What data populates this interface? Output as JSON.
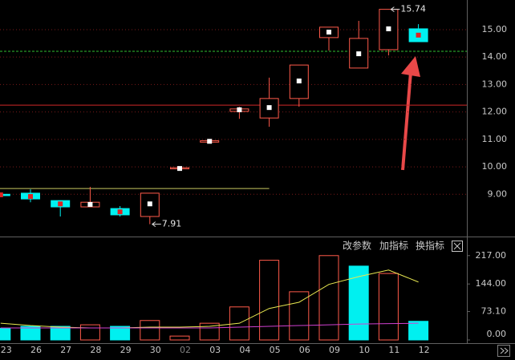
{
  "toolbar": [
    "改参数",
    "加指标",
    "换指标"
  ],
  "chart_data": [
    {
      "type": "candlestick",
      "open": [
        9.0,
        9.04,
        8.77,
        8.54,
        8.48,
        8.19,
        9.94,
        10.9,
        12.02,
        11.78,
        12.49,
        14.71,
        13.6,
        14.27,
        15.03
      ],
      "high": [
        9.05,
        9.18,
        8.77,
        9.27,
        8.57,
        9.04,
        10.0,
        10.95,
        12.19,
        13.25,
        13.71,
        15.09,
        15.32,
        15.74,
        15.2
      ],
      "low": [
        8.95,
        8.71,
        8.19,
        8.54,
        8.19,
        7.91,
        9.94,
        10.9,
        11.75,
        11.46,
        12.19,
        14.24,
        13.6,
        14.06,
        14.56
      ],
      "close": [
        8.95,
        8.83,
        8.54,
        8.71,
        8.25,
        9.04,
        9.97,
        10.95,
        12.11,
        12.49,
        13.71,
        15.09,
        14.68,
        15.74,
        14.56
      ],
      "markers": [
        8.98,
        8.92,
        8.65,
        8.63,
        8.36,
        8.65,
        9.94,
        10.93,
        12.08,
        12.16,
        13.13,
        14.91,
        14.12,
        15.03,
        14.8
      ],
      "up_color": "#ff5a4a",
      "down_color": "#00f0f0",
      "up_marker_color": "#ffffff",
      "down_marker_color": "#e02020",
      "levels": [
        {
          "value": 12.25,
          "color": "#d02828",
          "dash": false,
          "until": 14
        },
        {
          "value": 14.21,
          "color": "#30c030",
          "dash": true,
          "until": 14
        },
        {
          "value": 9.21,
          "color": "#c8c860",
          "dash": false,
          "until": 9
        }
      ],
      "annotations": [
        {
          "label": "15.74",
          "value": 15.74,
          "index": 13
        },
        {
          "label": "7.91",
          "value": 7.91,
          "index": 5
        }
      ],
      "ylim": [
        7.46,
        16.08
      ],
      "yticks": [
        {
          "value": 15,
          "label": "15.00"
        },
        {
          "value": 14,
          "label": "14.00"
        },
        {
          "value": 13,
          "label": "13.00"
        },
        {
          "value": 12,
          "label": "12.00"
        },
        {
          "value": 11,
          "label": "11.00"
        },
        {
          "value": 10,
          "label": "10.00"
        },
        {
          "value": 9,
          "label": "9.00"
        }
      ],
      "grid": true
    },
    {
      "type": "bar",
      "categories": [
        "23",
        "26",
        "27",
        "28",
        "29",
        "30",
        "02",
        "03",
        "04",
        "05",
        "06",
        "09",
        "10",
        "11",
        "12"
      ],
      "values": [
        30,
        35,
        35,
        39,
        35,
        50,
        10,
        43,
        85,
        205,
        124,
        217,
        190,
        171,
        48
      ],
      "colors": [
        "#00f0f0",
        "#00f0f0",
        "#00f0f0",
        "#ff5a4a",
        "#00f0f0",
        "#ff5a4a",
        "#ff5a4a",
        "#ff5a4a",
        "#ff5a4a",
        "#ff5a4a",
        "#ff5a4a",
        "#ff5a4a",
        "#00f0f0",
        "#ff5a4a",
        "#00f0f0"
      ],
      "lines": [
        {
          "color": "#e8e850",
          "values": [
            43,
            37,
            33,
            31,
            31,
            33,
            33,
            35,
            43,
            81,
            97,
            143,
            163,
            180,
            149
          ]
        },
        {
          "color": "#d040d0",
          "values": [
            31,
            31,
            31,
            31,
            31,
            31,
            31,
            31,
            33,
            35,
            37,
            39,
            41,
            42,
            43
          ]
        }
      ],
      "ylim": [
        0,
        264
      ],
      "yticks": [
        {
          "value": 217,
          "label": "217.00"
        },
        {
          "value": 144,
          "label": "144.00"
        },
        {
          "value": 73.1,
          "label": "73.10"
        },
        {
          "value": 0,
          "label": "0.00"
        }
      ]
    }
  ]
}
